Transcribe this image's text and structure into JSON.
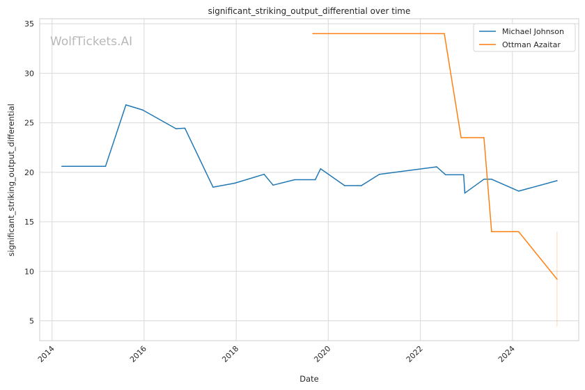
{
  "watermark": "WolfTickets.AI",
  "chart_data": {
    "type": "line",
    "title": "significant_striking_output_differential over time",
    "xlabel": "Date",
    "ylabel": "significant_striking_output_differential",
    "x_ticks": [
      "2014",
      "2016",
      "2018",
      "2020",
      "2022",
      "2024"
    ],
    "y_ticks": [
      5,
      10,
      15,
      20,
      25,
      30,
      35
    ],
    "xlim": [
      "2013-09-25",
      "2025-06-10"
    ],
    "ylim": [
      3,
      35.5
    ],
    "grid": true,
    "legend_position": "top-right",
    "series": [
      {
        "name": "Michael Johnson",
        "color": "#1f77b4",
        "points": [
          [
            "2014-03-20",
            20.6
          ],
          [
            "2015-03-01",
            20.6
          ],
          [
            "2015-08-10",
            26.8
          ],
          [
            "2015-12-20",
            26.3
          ],
          [
            "2016-09-10",
            24.4
          ],
          [
            "2016-11-20",
            24.45
          ],
          [
            "2017-07-01",
            18.5
          ],
          [
            "2017-12-20",
            18.9
          ],
          [
            "2018-08-10",
            19.8
          ],
          [
            "2018-10-20",
            18.7
          ],
          [
            "2019-04-10",
            19.25
          ],
          [
            "2019-09-20",
            19.25
          ],
          [
            "2019-11-01",
            20.35
          ],
          [
            "2020-05-10",
            18.65
          ],
          [
            "2020-09-20",
            18.65
          ],
          [
            "2021-02-10",
            19.8
          ],
          [
            "2022-05-10",
            20.55
          ],
          [
            "2022-07-20",
            19.75
          ],
          [
            "2022-12-10",
            19.75
          ],
          [
            "2022-12-20",
            17.9
          ],
          [
            "2023-05-20",
            19.3
          ],
          [
            "2023-07-20",
            19.3
          ],
          [
            "2024-02-20",
            18.1
          ],
          [
            "2024-12-20",
            19.15
          ]
        ]
      },
      {
        "name": "Ottman Azaitar",
        "color": "#ff7f0e",
        "points": [
          [
            "2019-09-01",
            34.0
          ],
          [
            "2022-07-10",
            34.0
          ],
          [
            "2022-11-20",
            23.5
          ],
          [
            "2023-05-20",
            23.5
          ],
          [
            "2023-07-20",
            14.0
          ],
          [
            "2024-02-20",
            14.0
          ],
          [
            "2024-12-20",
            9.2
          ]
        ],
        "error_band": {
          "x": "2024-12-20",
          "low": 4.4,
          "high": 14.0
        }
      }
    ]
  }
}
